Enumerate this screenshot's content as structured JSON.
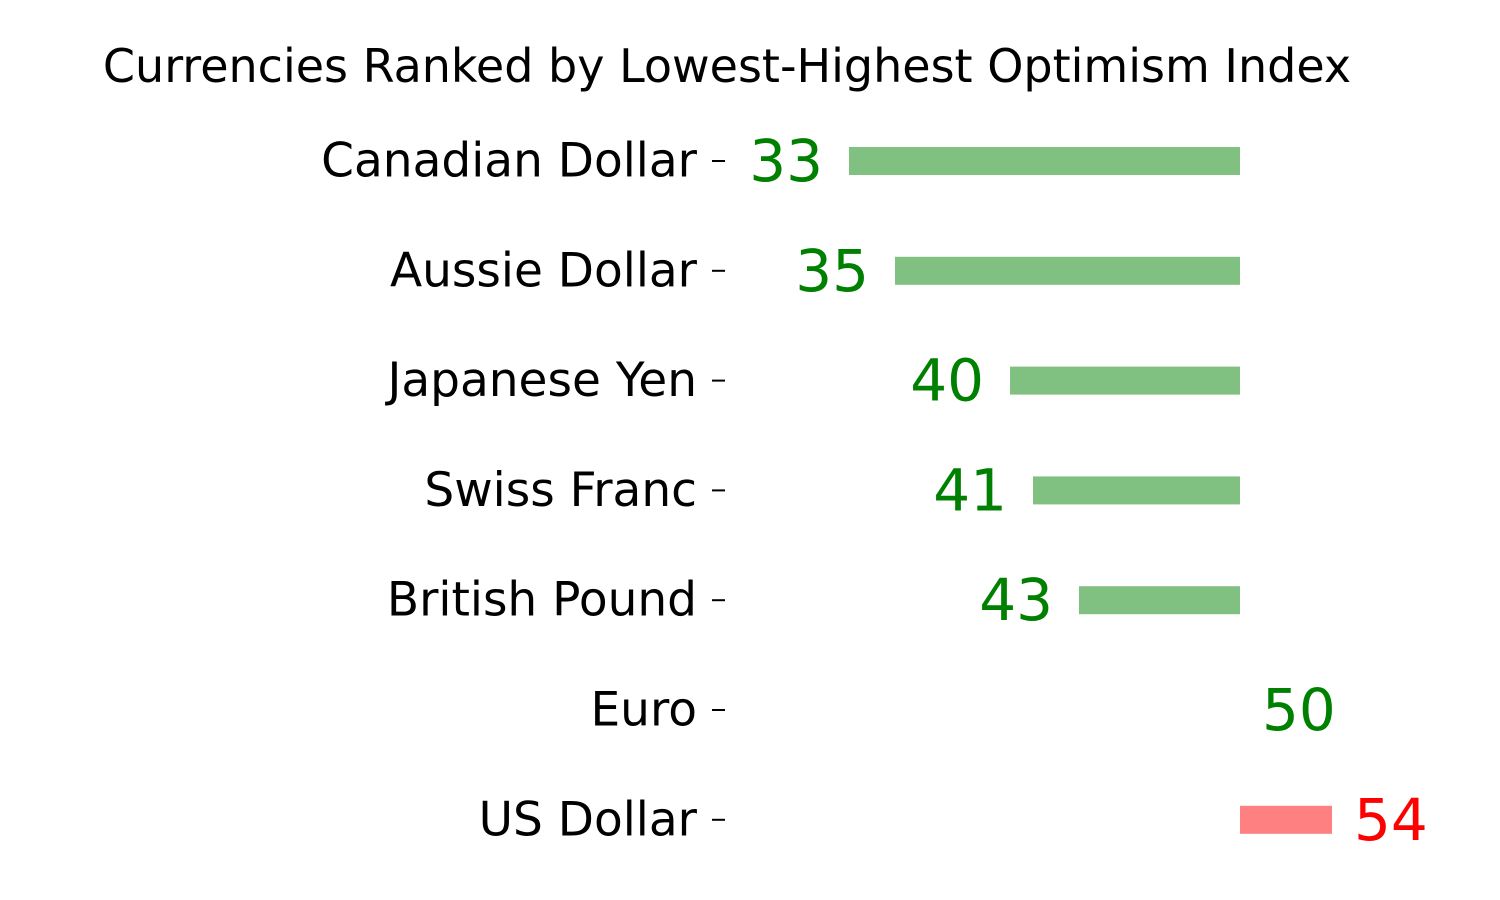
{
  "chart_data": {
    "type": "bar",
    "orientation": "horizontal",
    "title": "Currencies Ranked by Lowest-Highest Optimism Index",
    "xlabel": "",
    "ylabel": "",
    "baseline": 50,
    "xlim": [
      25,
      57
    ],
    "grid": false,
    "categories": [
      "Canadian Dollar",
      "Aussie Dollar",
      "Japanese Yen",
      "Swiss Franc",
      "British Pound",
      "Euro",
      "US Dollar"
    ],
    "values": [
      33,
      35,
      40,
      41,
      43,
      50,
      54
    ],
    "value_labels": [
      "33",
      "35",
      "40",
      "41",
      "43",
      "50",
      "54"
    ],
    "colors": {
      "below_baseline_bar": "#80c080",
      "above_baseline_bar": "#ff8080",
      "below_baseline_text": "#008000",
      "above_baseline_text": "#ff0000"
    }
  }
}
